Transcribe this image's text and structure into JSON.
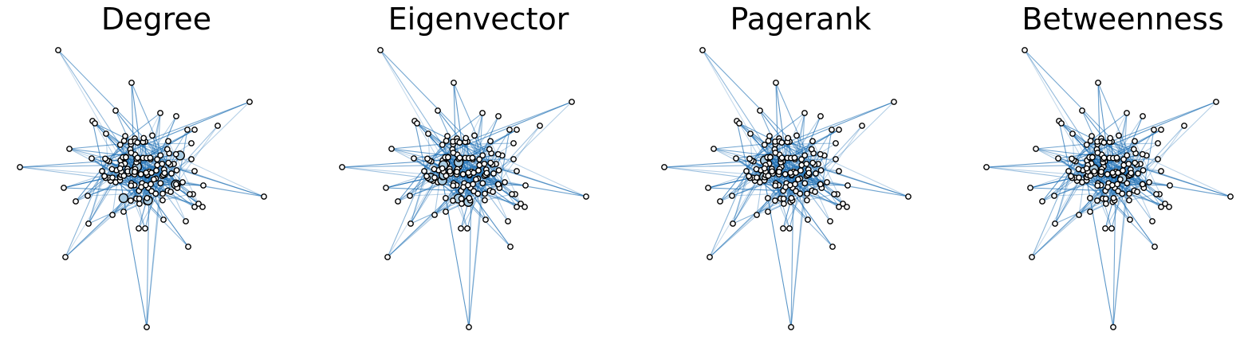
{
  "panels": [
    {
      "title": "Degree"
    },
    {
      "title": "Eigenvector"
    },
    {
      "title": "Pagerank"
    },
    {
      "title": "Betweenness"
    }
  ],
  "colors": {
    "edge": "#2171b5",
    "node_fill": "#ffffff",
    "node_fill_high": "#a9cce3",
    "node_stroke": "#000000"
  }
}
